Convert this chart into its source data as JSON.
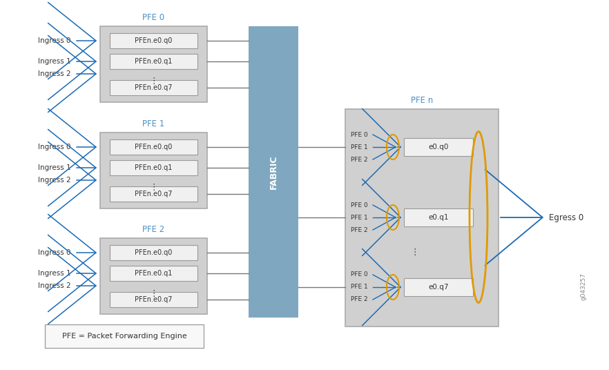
{
  "bg_color": "#ffffff",
  "fabric_color": "#7fa8c0",
  "pfe_box_color": "#d0d0d0",
  "pfe_box_edge": "#aaaaaa",
  "queue_box_color": "#f0f0f0",
  "queue_box_edge": "#999999",
  "arrow_color": "#1a6ab5",
  "orange_color": "#e09a00",
  "text_color_pfe": "#4a90c4",
  "text_color_dark": "#333333",
  "ingress_labels": [
    "Ingress 0",
    "Ingress 1",
    "Ingress 2"
  ],
  "queue_labels": [
    "PFEn.e0.q0",
    "PFEn.e0.q1",
    "PFEn.e0.q7"
  ],
  "egress_queue_labels": [
    "e0.q0",
    "e0.q1",
    "e0.q7"
  ],
  "egress_pfe_labels": [
    "PFE 0",
    "PFE 1",
    "PFE 2"
  ],
  "pfe_title_labels": [
    "PFE 0",
    "PFE 1",
    "PFE 2"
  ],
  "fabric_label": "FABRIC",
  "egress_label": "Egress 0",
  "pfe_n_label": "PFE n",
  "footnote": "g043257",
  "legend_text": "PFE = Packet Forwarding Engine"
}
